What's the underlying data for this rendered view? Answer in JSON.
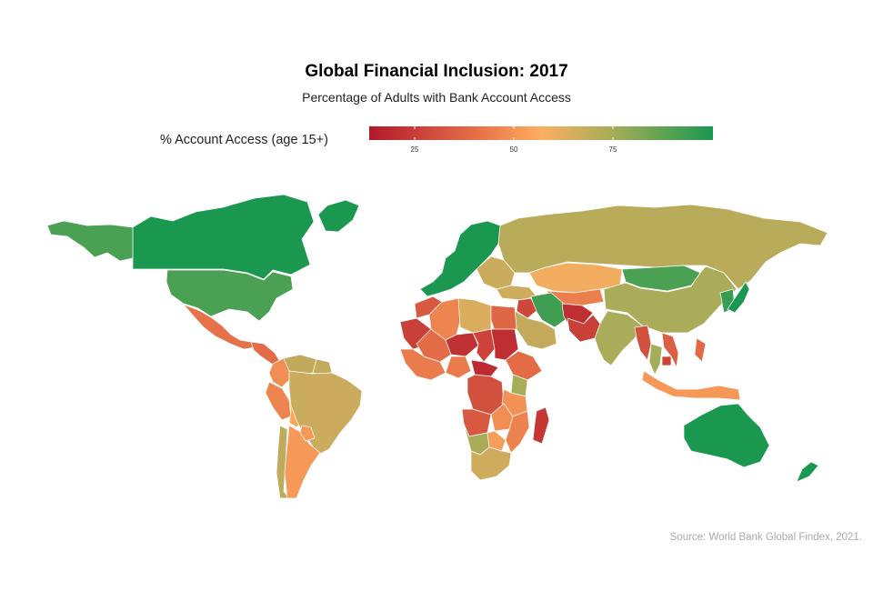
{
  "title": "Global Financial Inclusion: 2017",
  "subtitle": "Percentage of Adults with Bank Account Access",
  "legend": {
    "title": "% Account Access (age 15+)",
    "ticks": [
      "25",
      "50",
      "75"
    ],
    "colors": {
      "low": "#b2182b",
      "mid_low": "#e8754a",
      "mid": "#fdae61",
      "mid_high": "#9fad57",
      "high": "#1a9850"
    }
  },
  "source": "Source: World Bank Global Findex, 2021.",
  "map_data": {
    "type": "choropleth",
    "measure": "% Account Access (age 15+)",
    "regions": [
      {
        "name": "Canada",
        "value": 99
      },
      {
        "name": "United States",
        "value": 93
      },
      {
        "name": "Alaska",
        "value": 93
      },
      {
        "name": "Greenland",
        "value": 99
      },
      {
        "name": "Mexico",
        "value": 37
      },
      {
        "name": "Central America",
        "value": 35
      },
      {
        "name": "Colombia",
        "value": 46
      },
      {
        "name": "Venezuela",
        "value": 73
      },
      {
        "name": "Guianas",
        "value": 72
      },
      {
        "name": "Peru",
        "value": 43
      },
      {
        "name": "Bolivia",
        "value": 54
      },
      {
        "name": "Brazil",
        "value": 70
      },
      {
        "name": "Chile",
        "value": 74
      },
      {
        "name": "Argentina",
        "value": 49
      },
      {
        "name": "Paraguay",
        "value": 49
      },
      {
        "name": "Western Europe",
        "value": 99
      },
      {
        "name": "Eastern Europe",
        "value": 70
      },
      {
        "name": "Russia",
        "value": 76
      },
      {
        "name": "Kazakhstan",
        "value": 59
      },
      {
        "name": "Central Asia",
        "value": 41
      },
      {
        "name": "Mongolia",
        "value": 93
      },
      {
        "name": "China",
        "value": 80
      },
      {
        "name": "Korea",
        "value": 95
      },
      {
        "name": "Japan",
        "value": 98
      },
      {
        "name": "Turkey",
        "value": 69
      },
      {
        "name": "Iran",
        "value": 94
      },
      {
        "name": "Afghanistan",
        "value": 15
      },
      {
        "name": "Pakistan",
        "value": 21
      },
      {
        "name": "India",
        "value": 80
      },
      {
        "name": "Myanmar",
        "value": 26
      },
      {
        "name": "Thailand",
        "value": 82
      },
      {
        "name": "Vietnam",
        "value": 31
      },
      {
        "name": "Cambodia",
        "value": 22
      },
      {
        "name": "Indonesia",
        "value": 49
      },
      {
        "name": "Philippines",
        "value": 34
      },
      {
        "name": "Arabian Peninsula",
        "value": 72
      },
      {
        "name": "Iraq",
        "value": 23
      },
      {
        "name": "Morocco",
        "value": 29
      },
      {
        "name": "Algeria",
        "value": 43
      },
      {
        "name": "Libya",
        "value": 66
      },
      {
        "name": "Egypt",
        "value": 33
      },
      {
        "name": "Mauritania",
        "value": 21
      },
      {
        "name": "Mali",
        "value": 35
      },
      {
        "name": "Niger",
        "value": 16
      },
      {
        "name": "Chad",
        "value": 22
      },
      {
        "name": "Sudan",
        "value": 15
      },
      {
        "name": "West Africa",
        "value": 40
      },
      {
        "name": "Nigeria",
        "value": 40
      },
      {
        "name": "Central African Republic",
        "value": 14
      },
      {
        "name": "Ethiopia",
        "value": 35
      },
      {
        "name": "Kenya",
        "value": 82
      },
      {
        "name": "DR Congo",
        "value": 26
      },
      {
        "name": "Tanzania",
        "value": 47
      },
      {
        "name": "Angola",
        "value": 29
      },
      {
        "name": "Zambia",
        "value": 46
      },
      {
        "name": "Mozambique",
        "value": 42
      },
      {
        "name": "Namibia",
        "value": 81
      },
      {
        "name": "Botswana",
        "value": 51
      },
      {
        "name": "South Africa",
        "value": 69
      },
      {
        "name": "Madagascar",
        "value": 18
      },
      {
        "name": "Australia",
        "value": 100
      },
      {
        "name": "New Zealand",
        "value": 99
      }
    ]
  }
}
